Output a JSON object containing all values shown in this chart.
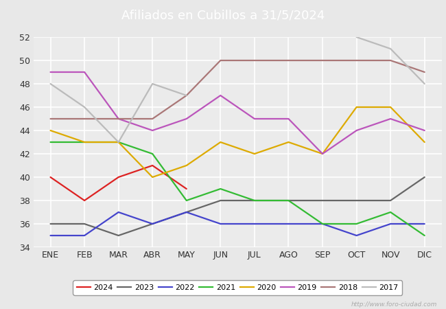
{
  "title": "Afiliados en Cubillos a 31/5/2024",
  "title_bg": "#3b9fd4",
  "months": [
    "ENE",
    "FEB",
    "MAR",
    "ABR",
    "MAY",
    "JUN",
    "JUL",
    "AGO",
    "SEP",
    "OCT",
    "NOV",
    "DIC"
  ],
  "ylim": [
    34,
    52
  ],
  "yticks": [
    34,
    36,
    38,
    40,
    42,
    44,
    46,
    48,
    50,
    52
  ],
  "series": [
    {
      "year": "2024",
      "color": "#dd2222",
      "data": [
        40,
        38,
        40,
        41,
        39,
        null,
        null,
        null,
        null,
        null,
        null,
        null
      ]
    },
    {
      "year": "2023",
      "color": "#666666",
      "data": [
        36,
        36,
        35,
        36,
        37,
        38,
        38,
        38,
        38,
        38,
        38,
        40
      ]
    },
    {
      "year": "2022",
      "color": "#4444cc",
      "data": [
        35,
        35,
        37,
        36,
        37,
        36,
        36,
        36,
        36,
        35,
        36,
        36
      ]
    },
    {
      "year": "2021",
      "color": "#33bb33",
      "data": [
        43,
        43,
        43,
        42,
        38,
        39,
        38,
        38,
        36,
        36,
        37,
        35
      ]
    },
    {
      "year": "2020",
      "color": "#ddaa00",
      "data": [
        44,
        43,
        43,
        40,
        41,
        43,
        42,
        43,
        42,
        46,
        46,
        43
      ]
    },
    {
      "year": "2019",
      "color": "#bb55bb",
      "data": [
        49,
        49,
        45,
        44,
        45,
        47,
        45,
        45,
        42,
        44,
        45,
        44
      ]
    },
    {
      "year": "2018",
      "color": "#aa7777",
      "data": [
        45,
        45,
        45,
        45,
        47,
        50,
        50,
        50,
        50,
        50,
        50,
        49
      ]
    },
    {
      "year": "2017",
      "color": "#bbbbbb",
      "data": [
        48,
        46,
        43,
        48,
        47,
        null,
        null,
        null,
        null,
        52,
        51,
        48
      ]
    }
  ],
  "watermark": "http://www.foro-ciudad.com",
  "bg_color": "#e8e8e8",
  "plot_bg": "#ebebeb",
  "grid_color": "#ffffff",
  "title_fontsize": 13,
  "tick_fontsize": 9,
  "legend_fontsize": 8,
  "linewidth": 1.6
}
